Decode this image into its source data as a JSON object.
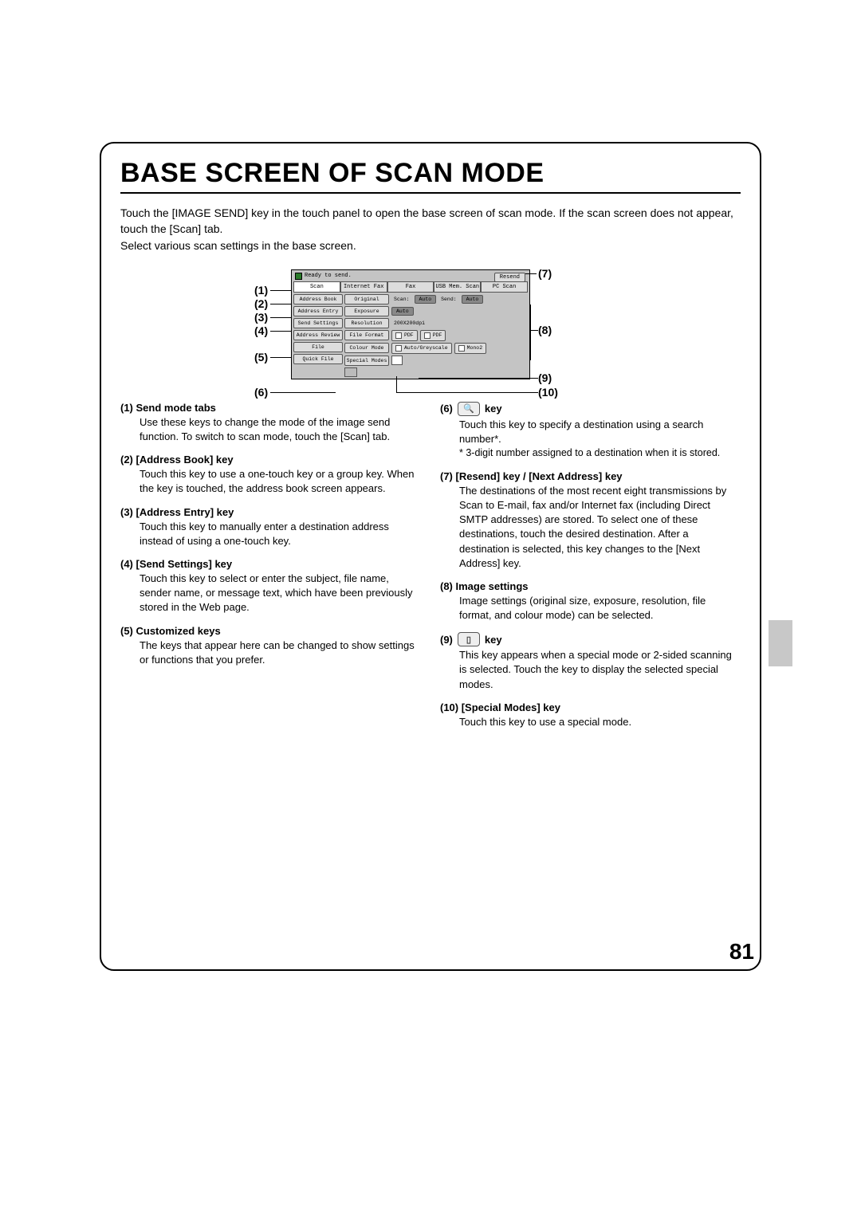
{
  "title": "BASE SCREEN OF SCAN MODE",
  "intro": "Touch the [IMAGE SEND] key in the touch panel to open the base screen of scan mode. If the scan screen does not appear, touch the [Scan] tab.\nSelect various scan settings in the base screen.",
  "page_number": "81",
  "diagram": {
    "status_text": "Ready to send.",
    "resend_label": "Resend",
    "tabs": [
      "Scan",
      "Internet Fax",
      "Fax",
      "USB Mem. Scan",
      "PC Scan"
    ],
    "side_buttons": [
      "Address Book",
      "Address Entry",
      "Send Settings",
      "Address Review",
      "File",
      "Quick File"
    ],
    "rows": {
      "original": {
        "label": "Original",
        "scan": "Scan:",
        "scan_val": "Auto",
        "send": "Send:",
        "send_val": "Auto"
      },
      "exposure": {
        "label": "Exposure",
        "val": "Auto"
      },
      "resolution": {
        "label": "Resolution",
        "val": "200X200dpi"
      },
      "file_format": {
        "label": "File Format",
        "val1": "PDF",
        "val2": "PDF"
      },
      "colour_mode": {
        "label": "Colour Mode",
        "val1": "Auto/Greyscale",
        "val2": "Mono2"
      },
      "special": {
        "label": "Special Modes"
      }
    }
  },
  "callouts": {
    "n1": "(1)",
    "n2": "(2)",
    "n3": "(3)",
    "n4": "(4)",
    "n5": "(5)",
    "n6": "(6)",
    "n7": "(7)",
    "n8": "(8)",
    "n9": "(9)",
    "n10": "(10)"
  },
  "left_items": [
    {
      "num": "(1)",
      "title": "Send mode tabs",
      "body": "Use these keys to change the mode of the image send function. To switch to scan mode, touch the [Scan] tab."
    },
    {
      "num": "(2)",
      "title": "[Address Book] key",
      "body": "Touch this key to use a one-touch key or a group key. When the key is touched, the address book screen appears."
    },
    {
      "num": "(3)",
      "title": "[Address Entry] key",
      "body": "Touch this key to manually enter a destination address instead of using a one-touch key."
    },
    {
      "num": "(4)",
      "title": "[Send Settings] key",
      "body": "Touch this key to select or enter the subject, file name, sender name, or message text, which have been previously stored in the Web page."
    },
    {
      "num": "(5)",
      "title": "Customized keys",
      "body": "The keys that appear here can be changed to show settings or functions that you prefer."
    }
  ],
  "right_items": [
    {
      "num": "(6)",
      "title_prefix": "",
      "title_suffix": " key",
      "has_icon": true,
      "icon_glyph": "🔍",
      "body": "Touch this key to specify a destination using a search number*.",
      "note": "* 3-digit number assigned to a destination when it is stored."
    },
    {
      "num": "(7)",
      "title": "[Resend] key / [Next Address] key",
      "body": "The destinations of the most recent eight transmissions by Scan to E-mail, fax and/or Internet fax (including Direct SMTP addresses) are stored. To select one of these destinations, touch the desired destination. After a destination is selected, this key changes to the [Next Address] key."
    },
    {
      "num": "(8)",
      "title": "Image settings",
      "body": "Image settings (original size, exposure, resolution, file format, and colour mode) can be selected."
    },
    {
      "num": "(9)",
      "title_prefix": "",
      "title_suffix": " key",
      "has_icon": true,
      "icon_glyph": "▯",
      "body": "This key appears when a special mode or 2-sided scanning is selected. Touch the key to display the selected special modes."
    },
    {
      "num": "(10)",
      "title": "[Special Modes] key",
      "body": "Touch this key to use a special mode."
    }
  ]
}
